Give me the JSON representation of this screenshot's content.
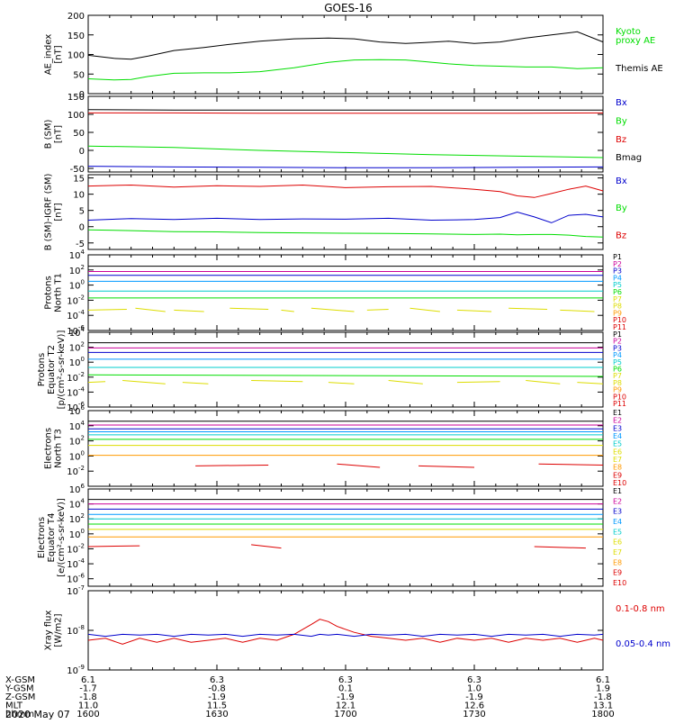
{
  "title": "GOES-16",
  "date_label": "2020 May 07",
  "orbit": {
    "rows": [
      {
        "label": "X-GSM",
        "values": [
          "6.1",
          "6.3",
          "6.3",
          "6.3",
          "6.1"
        ]
      },
      {
        "label": "Y-GSM",
        "values": [
          "-1.7",
          "-0.8",
          "0.1",
          "1.0",
          "1.9"
        ]
      },
      {
        "label": "Z-GSM",
        "values": [
          "-1.8",
          "-1.9",
          "-1.9",
          "-1.9",
          "-1.8"
        ]
      },
      {
        "label": "MLT",
        "values": [
          "11.0",
          "11.5",
          "12.1",
          "12.6",
          "13.1"
        ]
      },
      {
        "label": "hhmm",
        "values": [
          "1600",
          "1630",
          "1700",
          "1730",
          "1800"
        ]
      }
    ]
  },
  "colors": {
    "black": "#000000",
    "green": "#00dd00",
    "red": "#dd0000",
    "blue": "#0000cc"
  },
  "chart_data": [
    {
      "type": "line",
      "ylabel": [
        "AE_index",
        "[nT]"
      ],
      "ylim": [
        0,
        200
      ],
      "yticks": [
        "0",
        "50",
        "100",
        "150",
        "200"
      ],
      "x": [
        0,
        6,
        10,
        14,
        20,
        27,
        33,
        40,
        48,
        56,
        62,
        68,
        74,
        78,
        84,
        90,
        96,
        102,
        108,
        114,
        120
      ],
      "series": [
        {
          "name": "Kyoto proxy AE",
          "color": "#00dd00",
          "values": [
            38,
            35,
            36,
            44,
            52,
            53,
            53,
            56,
            66,
            80,
            86,
            87,
            86,
            82,
            76,
            72,
            70,
            68,
            68,
            64,
            66
          ]
        },
        {
          "name": "Themis AE",
          "color": "#000000",
          "values": [
            98,
            90,
            88,
            96,
            110,
            118,
            126,
            134,
            140,
            142,
            140,
            132,
            128,
            130,
            134,
            128,
            132,
            142,
            150,
            158,
            132
          ]
        }
      ],
      "legend": [
        {
          "text": "Kyoto",
          "color": "#00dd00"
        },
        {
          "text": "proxy AE",
          "color": "#00dd00"
        },
        {
          "text": "Themis AE",
          "color": "#000000"
        }
      ]
    },
    {
      "type": "line",
      "ylabel": [
        "B (SM)",
        "[nT]"
      ],
      "ylim": [
        -60,
        150
      ],
      "yticks": [
        "-50",
        "0",
        "50",
        "100",
        "150"
      ],
      "x": [
        0,
        20,
        40,
        60,
        80,
        100,
        120
      ],
      "series": [
        {
          "name": "Bx",
          "color": "#0000cc",
          "values": [
            -44,
            -46,
            -47,
            -48,
            -48,
            -47,
            -46
          ]
        },
        {
          "name": "By",
          "color": "#00dd00",
          "values": [
            12,
            8,
            0,
            -6,
            -12,
            -16,
            -20
          ]
        },
        {
          "name": "Bz",
          "color": "#dd0000",
          "values": [
            104,
            104,
            103,
            103,
            103,
            103,
            104
          ]
        },
        {
          "name": "Bmag",
          "color": "#000000",
          "values": [
            113,
            112,
            112,
            112,
            112,
            112,
            112
          ]
        }
      ],
      "legend": [
        {
          "text": "Bx",
          "color": "#0000cc"
        },
        {
          "text": "By",
          "color": "#00dd00"
        },
        {
          "text": "Bz",
          "color": "#dd0000"
        },
        {
          "text": "Bmag",
          "color": "#000000"
        }
      ]
    },
    {
      "type": "line",
      "ylabel": [
        "B (SM)-IGRF (SM)",
        "[nT]"
      ],
      "ylim": [
        -7,
        16
      ],
      "yticks": [
        "-5",
        "0",
        "5",
        "10",
        "15"
      ],
      "x": [
        0,
        10,
        20,
        30,
        40,
        50,
        60,
        70,
        80,
        90,
        96,
        100,
        104,
        108,
        112,
        116,
        120
      ],
      "series": [
        {
          "name": "Bx",
          "color": "#0000cc",
          "values": [
            2,
            2.5,
            2.2,
            2.6,
            2.2,
            2.4,
            2.3,
            2.6,
            2.0,
            2.2,
            2.8,
            4.5,
            3.0,
            1.2,
            3.5,
            3.8,
            3.0
          ]
        },
        {
          "name": "By",
          "color": "#00dd00",
          "values": [
            -1,
            -1.2,
            -1.5,
            -1.6,
            -1.8,
            -1.9,
            -2.0,
            -2.1,
            -2.2,
            -2.4,
            -2.3,
            -2.5,
            -2.4,
            -2.4,
            -2.6,
            -3.0,
            -3.2
          ]
        },
        {
          "name": "Bz",
          "color": "#dd0000",
          "values": [
            12.5,
            12.8,
            12.2,
            12.6,
            12.4,
            12.8,
            12.0,
            12.3,
            12.4,
            11.5,
            10.8,
            9.5,
            9.0,
            10.2,
            11.5,
            12.5,
            11.0
          ]
        }
      ],
      "legend": [
        {
          "text": "Bx",
          "color": "#0000cc"
        },
        {
          "text": "By",
          "color": "#00dd00"
        },
        {
          "text": "Bz",
          "color": "#dd0000"
        }
      ]
    },
    {
      "type": "line",
      "log": true,
      "ylabel": [
        "Protons",
        "North T1"
      ],
      "ylim_exp": [
        -6,
        4
      ],
      "yticks": [
        "10-6",
        "10-4",
        "10-2",
        "100",
        "102",
        "104"
      ],
      "series": [
        {
          "name": "P1",
          "color": "#000000",
          "values": [
            2.5,
            2.5
          ]
        },
        {
          "name": "P2",
          "color": "#cc0099",
          "values": [
            1.8,
            1.8
          ]
        },
        {
          "name": "P3",
          "color": "#0000cc",
          "values": [
            1.3,
            1.3
          ]
        },
        {
          "name": "P4",
          "color": "#0099ff",
          "values": [
            0.5,
            0.5
          ]
        },
        {
          "name": "P5",
          "color": "#00cccc",
          "values": [
            -0.8,
            -0.8
          ]
        },
        {
          "name": "P6",
          "color": "#00dd00",
          "values": [
            -1.7,
            -1.7
          ]
        },
        {
          "name": "P7",
          "color": "#dddd00",
          "values": [
            -3.2,
            -3.4
          ],
          "segments": [
            [
              0,
              9
            ],
            [
              11,
              18
            ],
            [
              20,
              27
            ],
            [
              33,
              42
            ],
            [
              45,
              48
            ],
            [
              52,
              62
            ],
            [
              65,
              70
            ],
            [
              75,
              82
            ],
            [
              86,
              94
            ],
            [
              98,
              107
            ],
            [
              110,
              118
            ]
          ]
        }
      ],
      "legend": [
        {
          "text": "P1",
          "color": "#000000"
        },
        {
          "text": "P2",
          "color": "#cc0099"
        },
        {
          "text": "P3",
          "color": "#0000cc"
        },
        {
          "text": "P4",
          "color": "#0099ff"
        },
        {
          "text": "P5",
          "color": "#00cccc"
        },
        {
          "text": "P6",
          "color": "#00dd00"
        },
        {
          "text": "P7",
          "color": "#dddd00"
        },
        {
          "text": "P8",
          "color": "#dddd00"
        },
        {
          "text": "P9",
          "color": "#ff9900"
        },
        {
          "text": "P10",
          "color": "#dd0000"
        },
        {
          "text": "P11",
          "color": "#dd0000"
        }
      ]
    },
    {
      "type": "line",
      "log": true,
      "ylabel": [
        "Protons",
        "Equator T2",
        "[p/(cm²-s-sr-keV)]"
      ],
      "ylim_exp": [
        -6,
        4
      ],
      "yticks": [
        "10-6",
        "10-4",
        "10-2",
        "100",
        "102",
        "104"
      ],
      "series": [
        {
          "name": "P1",
          "color": "#000000",
          "values": [
            2.6,
            2.6
          ]
        },
        {
          "name": "P2",
          "color": "#cc0099",
          "values": [
            1.9,
            1.9
          ]
        },
        {
          "name": "P3",
          "color": "#0000cc",
          "values": [
            1.3,
            1.3
          ]
        },
        {
          "name": "P4",
          "color": "#0099ff",
          "values": [
            0.4,
            0.4
          ]
        },
        {
          "name": "P5",
          "color": "#00cccc",
          "values": [
            -0.7,
            -0.7
          ]
        },
        {
          "name": "P6",
          "color": "#00dd00",
          "values": [
            -1.7,
            -1.9
          ]
        },
        {
          "name": "P7",
          "color": "#dddd00",
          "values": [
            -2.6,
            -2.8
          ],
          "segments": [
            [
              0,
              4
            ],
            [
              8,
              18
            ],
            [
              22,
              28
            ],
            [
              38,
              50
            ],
            [
              56,
              62
            ],
            [
              70,
              78
            ],
            [
              86,
              96
            ],
            [
              102,
              110
            ],
            [
              114,
              120
            ]
          ]
        }
      ],
      "legend": [
        {
          "text": "P1",
          "color": "#000000"
        },
        {
          "text": "P2",
          "color": "#cc0099"
        },
        {
          "text": "P3",
          "color": "#0000cc"
        },
        {
          "text": "P4",
          "color": "#0099ff"
        },
        {
          "text": "P5",
          "color": "#00cccc"
        },
        {
          "text": "P6",
          "color": "#00dd00"
        },
        {
          "text": "P7",
          "color": "#dddd00"
        },
        {
          "text": "P8",
          "color": "#dddd00"
        },
        {
          "text": "P9",
          "color": "#ff9900"
        },
        {
          "text": "P10",
          "color": "#dd0000"
        },
        {
          "text": "P11",
          "color": "#dd0000"
        }
      ]
    },
    {
      "type": "line",
      "log": true,
      "ylabel": [
        "Electrons",
        "North T3"
      ],
      "ylim_exp": [
        -4,
        6
      ],
      "yticks": [
        "10-2",
        "100",
        "102",
        "104",
        "106"
      ],
      "series": [
        {
          "name": "E1",
          "color": "#000000",
          "values": [
            4.6,
            4.6
          ]
        },
        {
          "name": "E2",
          "color": "#cc0099",
          "values": [
            4.1,
            4.1
          ]
        },
        {
          "name": "E3",
          "color": "#0000cc",
          "values": [
            3.6,
            3.6
          ]
        },
        {
          "name": "E4",
          "color": "#0099ff",
          "values": [
            3.2,
            3.2
          ]
        },
        {
          "name": "E5",
          "color": "#00cccc",
          "values": [
            2.8,
            2.8
          ]
        },
        {
          "name": "E6",
          "color": "#00dd00",
          "values": [
            2.2,
            2.2
          ]
        },
        {
          "name": "E7",
          "color": "#dddd00",
          "values": [
            1.4,
            1.4
          ]
        },
        {
          "name": "E8",
          "color": "#ff9900",
          "values": [
            0.1,
            0.1
          ]
        },
        {
          "name": "E9",
          "color": "#dd0000",
          "values": [
            -1.2,
            -1.4
          ],
          "segments": [
            [
              25,
              42
            ],
            [
              58,
              68
            ],
            [
              77,
              90
            ],
            [
              105,
              120
            ]
          ]
        }
      ],
      "legend": [
        {
          "text": "E1",
          "color": "#000000"
        },
        {
          "text": "E2",
          "color": "#cc0099"
        },
        {
          "text": "E3",
          "color": "#0000cc"
        },
        {
          "text": "E4",
          "color": "#0099ff"
        },
        {
          "text": "E5",
          "color": "#00cccc"
        },
        {
          "text": "E6",
          "color": "#dddd00"
        },
        {
          "text": "E7",
          "color": "#dddd00"
        },
        {
          "text": "E8",
          "color": "#ff9900"
        },
        {
          "text": "E9",
          "color": "#dd0000"
        },
        {
          "text": "E10",
          "color": "#dd0000"
        }
      ]
    },
    {
      "type": "line",
      "log": true,
      "ylabel": [
        "Electrons",
        "Equator T4",
        "[e/(cm²-s-sr-keV)]"
      ],
      "ylim_exp": [
        -7,
        6
      ],
      "yticks": [
        "10-6",
        "10-4",
        "10-2",
        "100",
        "102",
        "104",
        "106"
      ],
      "series": [
        {
          "name": "E1",
          "color": "#000000",
          "values": [
            4.6,
            4.6
          ]
        },
        {
          "name": "E2",
          "color": "#cc0099",
          "values": [
            4.0,
            4.0
          ]
        },
        {
          "name": "E3",
          "color": "#0000cc",
          "values": [
            3.3,
            3.3
          ]
        },
        {
          "name": "E4",
          "color": "#0099ff",
          "values": [
            2.6,
            2.6
          ]
        },
        {
          "name": "E5",
          "color": "#00cccc",
          "values": [
            2.0,
            2.0
          ]
        },
        {
          "name": "E6",
          "color": "#00dd00",
          "values": [
            1.3,
            1.3
          ]
        },
        {
          "name": "E7",
          "color": "#dddd00",
          "values": [
            0.6,
            0.6
          ]
        },
        {
          "name": "E8",
          "color": "#ff9900",
          "values": [
            -0.4,
            -0.4
          ]
        },
        {
          "name": "E9",
          "color": "#dd0000",
          "values": [
            -1.6,
            -1.8
          ],
          "segments": [
            [
              0,
              12
            ],
            [
              38,
              45
            ],
            [
              104,
              116
            ]
          ]
        }
      ],
      "legend": [
        {
          "text": "E1",
          "color": "#000000"
        },
        {
          "text": "E2",
          "color": "#cc0099"
        },
        {
          "text": "E3",
          "color": "#0000cc"
        },
        {
          "text": "E4",
          "color": "#0099ff"
        },
        {
          "text": "E5",
          "color": "#00cccc"
        },
        {
          "text": "E6",
          "color": "#dddd00"
        },
        {
          "text": "E7",
          "color": "#dddd00"
        },
        {
          "text": "E8",
          "color": "#ff9900"
        },
        {
          "text": "E9",
          "color": "#dd0000"
        },
        {
          "text": "E10",
          "color": "#dd0000"
        }
      ]
    },
    {
      "type": "line",
      "log": true,
      "ylabel": [
        "Xray flux",
        "[W/m2]"
      ],
      "ylim_exp": [
        -9,
        -7
      ],
      "yticks": [
        "10-9",
        "10-8",
        "10-7"
      ],
      "x": [
        0,
        4,
        8,
        12,
        16,
        20,
        24,
        28,
        32,
        36,
        40,
        44,
        48,
        52,
        54,
        56,
        58,
        62,
        66,
        70,
        74,
        78,
        82,
        86,
        90,
        94,
        98,
        102,
        106,
        110,
        114,
        118,
        120
      ],
      "series": [
        {
          "name": "0.1-0.8 nm",
          "color": "#dd0000",
          "values": [
            -8.25,
            -8.2,
            -8.35,
            -8.2,
            -8.3,
            -8.2,
            -8.3,
            -8.25,
            -8.2,
            -8.3,
            -8.2,
            -8.25,
            -8.1,
            -7.85,
            -7.72,
            -7.78,
            -7.9,
            -8.05,
            -8.15,
            -8.2,
            -8.25,
            -8.2,
            -8.3,
            -8.2,
            -8.25,
            -8.2,
            -8.3,
            -8.2,
            -8.25,
            -8.2,
            -8.3,
            -8.2,
            -8.25
          ]
        },
        {
          "name": "0.05-0.4 nm",
          "color": "#0000cc",
          "values": [
            -8.1,
            -8.15,
            -8.1,
            -8.12,
            -8.1,
            -8.15,
            -8.1,
            -8.12,
            -8.1,
            -8.15,
            -8.1,
            -8.12,
            -8.1,
            -8.15,
            -8.1,
            -8.12,
            -8.1,
            -8.15,
            -8.1,
            -8.12,
            -8.1,
            -8.15,
            -8.1,
            -8.12,
            -8.1,
            -8.15,
            -8.1,
            -8.12,
            -8.1,
            -8.15,
            -8.1,
            -8.12,
            -8.1
          ]
        }
      ],
      "legend": [
        {
          "text": "0.1-0.8 nm",
          "color": "#dd0000"
        },
        {
          "text": "0.05-0.4 nm",
          "color": "#0000cc"
        }
      ]
    }
  ]
}
